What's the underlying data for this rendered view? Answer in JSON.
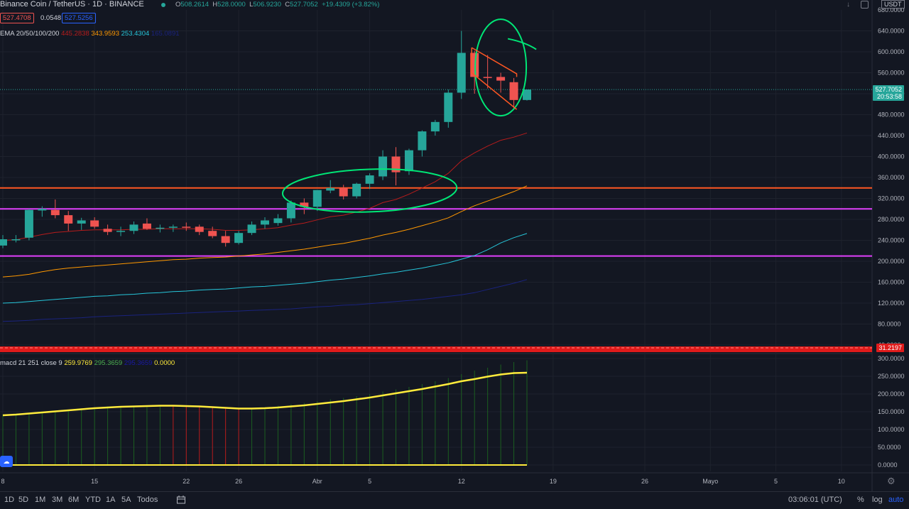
{
  "header": {
    "symbol": "Binance Coin / TetherUS · 1D · BINANCE",
    "o_label": "O",
    "o_value": "508.2614",
    "h_label": "H",
    "h_value": "528.0000",
    "l_label": "L",
    "l_value": "506.9230",
    "c_label": "C",
    "c_value": "527.7052",
    "change": "+19.4309 (+3.82%)",
    "bid": "527.4708",
    "spread": "0.0548",
    "ask": "527.5256",
    "currency": "USDT"
  },
  "ema": {
    "label": "EMA 20/50/100/200",
    "v20": "445.2838",
    "v50": "343.9593",
    "v100": "253.4304",
    "v200": "165.0891"
  },
  "macd": {
    "label": "macd 21 251 close 9",
    "v1": "259.9769",
    "v2": "295.3659",
    "v3": "295.3659",
    "v4": "0.0000"
  },
  "price_axis": {
    "ticks": [
      "640.0000",
      "600.0000",
      "560.0000",
      "520.0000",
      "480.0000",
      "440.0000",
      "400.0000",
      "360.0000",
      "320.0000",
      "280.0000",
      "240.0000",
      "200.0000",
      "160.0000",
      "120.0000",
      "80.0000",
      "40.0000"
    ],
    "top_clip": "680.0000",
    "current_price": "527.7052",
    "countdown": "20:53:58",
    "rsi_value": "31.2197"
  },
  "macd_axis": {
    "ticks": [
      "300.0000",
      "250.0000",
      "200.0000",
      "150.0000",
      "100.0000",
      "50.0000",
      "0.0000"
    ]
  },
  "time_axis": {
    "labels": [
      "8",
      "15",
      "22",
      "26",
      "Abr",
      "5",
      "12",
      "19",
      "26",
      "Mayo",
      "5",
      "10"
    ]
  },
  "toolbar": {
    "ranges": [
      "1D",
      "5D",
      "1M",
      "3M",
      "6M",
      "YTD",
      "1A",
      "5A",
      "Todos"
    ],
    "clock": "03:06:01 (UTC)",
    "percent": "%",
    "log": "log",
    "auto": "auto"
  },
  "colors": {
    "up": "#26a69a",
    "down": "#ef5350",
    "ema20": "#b71c1c",
    "ema50": "#ff9800",
    "ema100": "#26c6da",
    "ema200": "#1a237e",
    "support_orange": "#ff5722",
    "support_magenta": "#e040fb",
    "annotation": "#00e676",
    "macd_line": "#ffeb3b",
    "signal_line": "#1a1aa6"
  },
  "chart_data": {
    "type": "candlestick",
    "title": "Binance Coin / TetherUS · 1D · BINANCE",
    "ylim": [
      40,
      680
    ],
    "candles": [
      {
        "date": "8",
        "o": 230,
        "h": 250,
        "l": 225,
        "c": 242
      },
      {
        "date": "9",
        "o": 242,
        "h": 250,
        "l": 236,
        "c": 242
      },
      {
        "date": "10",
        "o": 245,
        "h": 300,
        "l": 240,
        "c": 298
      },
      {
        "date": "11",
        "o": 297,
        "h": 305,
        "l": 285,
        "c": 300
      },
      {
        "date": "12",
        "o": 298,
        "h": 318,
        "l": 282,
        "c": 288
      },
      {
        "date": "13",
        "o": 288,
        "h": 296,
        "l": 258,
        "c": 272
      },
      {
        "date": "14",
        "o": 272,
        "h": 283,
        "l": 260,
        "c": 278
      },
      {
        "date": "15",
        "o": 278,
        "h": 284,
        "l": 262,
        "c": 266
      },
      {
        "date": "16",
        "o": 262,
        "h": 270,
        "l": 250,
        "c": 256
      },
      {
        "date": "17",
        "o": 256,
        "h": 266,
        "l": 248,
        "c": 258
      },
      {
        "date": "18",
        "o": 258,
        "h": 276,
        "l": 252,
        "c": 270
      },
      {
        "date": "19",
        "o": 272,
        "h": 282,
        "l": 260,
        "c": 262
      },
      {
        "date": "20",
        "o": 262,
        "h": 270,
        "l": 255,
        "c": 264
      },
      {
        "date": "21",
        "o": 264,
        "h": 270,
        "l": 256,
        "c": 266
      },
      {
        "date": "22",
        "o": 266,
        "h": 274,
        "l": 258,
        "c": 264
      },
      {
        "date": "23",
        "o": 266,
        "h": 270,
        "l": 250,
        "c": 256
      },
      {
        "date": "24",
        "o": 258,
        "h": 266,
        "l": 244,
        "c": 248
      },
      {
        "date": "25",
        "o": 248,
        "h": 258,
        "l": 228,
        "c": 235
      },
      {
        "date": "26",
        "o": 235,
        "h": 258,
        "l": 232,
        "c": 254
      },
      {
        "date": "27",
        "o": 254,
        "h": 276,
        "l": 250,
        "c": 270
      },
      {
        "date": "28",
        "o": 270,
        "h": 284,
        "l": 262,
        "c": 278
      },
      {
        "date": "29",
        "o": 273,
        "h": 290,
        "l": 268,
        "c": 282
      },
      {
        "date": "30",
        "o": 282,
        "h": 316,
        "l": 274,
        "c": 312
      },
      {
        "date": "31",
        "o": 312,
        "h": 320,
        "l": 290,
        "c": 304
      },
      {
        "date": "Abr",
        "o": 304,
        "h": 336,
        "l": 296,
        "c": 336
      },
      {
        "date": "2",
        "o": 335,
        "h": 355,
        "l": 330,
        "c": 340
      },
      {
        "date": "3",
        "o": 340,
        "h": 346,
        "l": 318,
        "c": 324
      },
      {
        "date": "4",
        "o": 324,
        "h": 350,
        "l": 320,
        "c": 348
      },
      {
        "date": "5",
        "o": 348,
        "h": 368,
        "l": 338,
        "c": 364
      },
      {
        "date": "6",
        "o": 362,
        "h": 412,
        "l": 355,
        "c": 400
      },
      {
        "date": "7",
        "o": 400,
        "h": 418,
        "l": 345,
        "c": 370
      },
      {
        "date": "8",
        "o": 372,
        "h": 415,
        "l": 365,
        "c": 412
      },
      {
        "date": "9",
        "o": 412,
        "h": 450,
        "l": 400,
        "c": 448
      },
      {
        "date": "10",
        "o": 448,
        "h": 470,
        "l": 440,
        "c": 466
      },
      {
        "date": "11",
        "o": 466,
        "h": 528,
        "l": 455,
        "c": 522
      },
      {
        "date": "12",
        "o": 522,
        "h": 640,
        "l": 510,
        "c": 598
      },
      {
        "date": "13",
        "o": 598,
        "h": 602,
        "l": 520,
        "c": 552
      },
      {
        "date": "14",
        "o": 552,
        "h": 594,
        "l": 530,
        "c": 550
      },
      {
        "date": "15",
        "o": 552,
        "h": 560,
        "l": 522,
        "c": 545
      },
      {
        "date": "16",
        "o": 542,
        "h": 550,
        "l": 490,
        "c": 508
      },
      {
        "date": "17",
        "o": 508,
        "h": 528,
        "l": 507,
        "c": 528
      }
    ],
    "ema20": [
      240,
      241,
      246,
      251,
      255,
      257,
      259,
      260,
      260,
      260,
      261,
      261,
      262,
      262,
      262,
      262,
      261,
      259,
      259,
      260,
      262,
      264,
      269,
      273,
      279,
      285,
      288,
      294,
      301,
      312,
      318,
      328,
      340,
      352,
      368,
      392,
      407,
      420,
      431,
      437,
      445
    ],
    "ema50": [
      170,
      172,
      175,
      180,
      184,
      187,
      189,
      191,
      193,
      195,
      197,
      199,
      201,
      203,
      204,
      206,
      207,
      208,
      210,
      212,
      214,
      217,
      220,
      223,
      227,
      231,
      234,
      239,
      244,
      250,
      255,
      261,
      268,
      275,
      283,
      295,
      306,
      315,
      324,
      333,
      344
    ],
    "ema100": [
      120,
      121,
      123,
      125,
      127,
      129,
      131,
      133,
      134,
      136,
      137,
      139,
      140,
      142,
      143,
      145,
      146,
      147,
      149,
      151,
      152,
      154,
      156,
      158,
      161,
      164,
      166,
      169,
      172,
      176,
      179,
      183,
      187,
      192,
      197,
      204,
      211,
      222,
      235,
      245,
      253
    ],
    "ema200": [
      85,
      86,
      87,
      89,
      90,
      91,
      92,
      94,
      95,
      96,
      97,
      98,
      99,
      100,
      101,
      102,
      103,
      104,
      105,
      106,
      107,
      108,
      109,
      111,
      113,
      114,
      116,
      117,
      119,
      121,
      123,
      125,
      127,
      130,
      133,
      136,
      140,
      146,
      152,
      158,
      165
    ],
    "horizontal_lines": [
      340,
      300,
      210
    ],
    "macd_panel": {
      "ylim": [
        -10,
        310
      ],
      "macd": [
        140,
        142,
        145,
        148,
        151,
        154,
        157,
        160,
        162,
        164,
        165,
        166,
        167,
        167,
        166,
        165,
        163,
        161,
        159,
        160,
        163,
        167,
        171,
        175,
        180,
        185,
        189,
        194,
        200,
        207,
        213,
        220,
        228,
        236,
        245,
        256,
        266,
        274,
        283,
        290,
        295
      ],
      "signal": [
        140,
        142,
        145,
        148,
        151,
        154,
        157,
        160,
        162,
        164,
        165,
        166,
        167,
        167,
        166,
        165,
        163,
        161,
        159,
        159,
        160,
        162,
        165,
        168,
        172,
        176,
        180,
        185,
        190,
        196,
        202,
        208,
        214,
        221,
        228,
        236,
        242,
        249,
        255,
        259,
        260
      ],
      "histogram": [
        142,
        144,
        146,
        149,
        152,
        156,
        160,
        163,
        165,
        166,
        167,
        168,
        168,
        167,
        166,
        165,
        163,
        161,
        159,
        160,
        163,
        167,
        171,
        175,
        180,
        185,
        189,
        194,
        200,
        207,
        213,
        220,
        228,
        236,
        245,
        256,
        266,
        274,
        283,
        290,
        295
      ]
    }
  }
}
